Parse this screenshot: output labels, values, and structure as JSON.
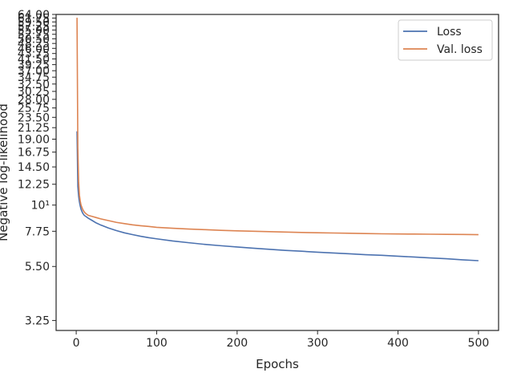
{
  "chart_data": {
    "type": "line",
    "title": "",
    "xlabel": "Epochs",
    "ylabel": "Negative log-likelihood",
    "xlim": [
      -25,
      525
    ],
    "ylim": [
      2.95,
      64.0
    ],
    "yscale": "log",
    "grid": false,
    "legend": {
      "placement": "top-right"
    },
    "x_ticks": [
      0,
      100,
      200,
      300,
      400,
      500
    ],
    "x_tick_labels": [
      "0",
      "100",
      "200",
      "300",
      "400",
      "500"
    ],
    "y_ticks": [
      3.25,
      5.5,
      7.75,
      10,
      12.25,
      14.5,
      16.75,
      19.0,
      21.25,
      23.5,
      25.75,
      28.0,
      30.25,
      32.5,
      34.75,
      37.0,
      39.25,
      41.5,
      43.75,
      46.0,
      48.25,
      50.5,
      52.75,
      55.0,
      57.25,
      59.5,
      61.75,
      64.0
    ],
    "y_tick_labels": [
      "3.25",
      "5.50",
      "7.75",
      "10¹",
      "12.25",
      "14.50",
      "16.75",
      "19.00",
      "21.25",
      "23.50",
      "25.75",
      "28.00",
      "30.25",
      "32.50",
      "34.75",
      "37.00",
      "39.25",
      "41.50",
      "43.75",
      "46.00",
      "48.25",
      "50.50",
      "52.75",
      "55.00",
      "57.25",
      "59.50",
      "61.75",
      "64.00"
    ],
    "series": [
      {
        "name": "Loss",
        "color": "#4c72b0",
        "x": [
          1,
          2,
          3,
          4,
          5,
          6,
          8,
          10,
          12,
          15,
          20,
          25,
          30,
          40,
          50,
          60,
          70,
          80,
          90,
          100,
          120,
          140,
          160,
          180,
          200,
          220,
          240,
          260,
          280,
          300,
          320,
          340,
          360,
          380,
          400,
          420,
          440,
          460,
          480,
          500
        ],
        "values": [
          20.5,
          12.0,
          10.9,
          10.3,
          9.9,
          9.6,
          9.25,
          9.05,
          8.95,
          8.8,
          8.6,
          8.4,
          8.25,
          8.0,
          7.8,
          7.63,
          7.5,
          7.38,
          7.28,
          7.2,
          7.05,
          6.93,
          6.82,
          6.73,
          6.65,
          6.57,
          6.5,
          6.43,
          6.38,
          6.32,
          6.27,
          6.22,
          6.17,
          6.13,
          6.08,
          6.03,
          5.98,
          5.93,
          5.87,
          5.82
        ]
      },
      {
        "name": "Val. loss",
        "color": "#dd8452",
        "x": [
          1,
          2,
          3,
          4,
          5,
          6,
          8,
          10,
          12,
          15,
          20,
          25,
          30,
          40,
          50,
          60,
          70,
          80,
          90,
          100,
          120,
          140,
          160,
          180,
          200,
          220,
          240,
          260,
          280,
          300,
          320,
          340,
          360,
          380,
          400,
          420,
          440,
          460,
          480,
          500
        ],
        "values": [
          62.0,
          17.5,
          12.5,
          11.0,
          10.4,
          10.0,
          9.6,
          9.35,
          9.2,
          9.05,
          8.95,
          8.85,
          8.75,
          8.6,
          8.45,
          8.35,
          8.25,
          8.18,
          8.12,
          8.05,
          7.98,
          7.92,
          7.87,
          7.82,
          7.78,
          7.75,
          7.72,
          7.69,
          7.66,
          7.64,
          7.62,
          7.6,
          7.58,
          7.56,
          7.55,
          7.54,
          7.53,
          7.52,
          7.51,
          7.5
        ]
      }
    ]
  }
}
